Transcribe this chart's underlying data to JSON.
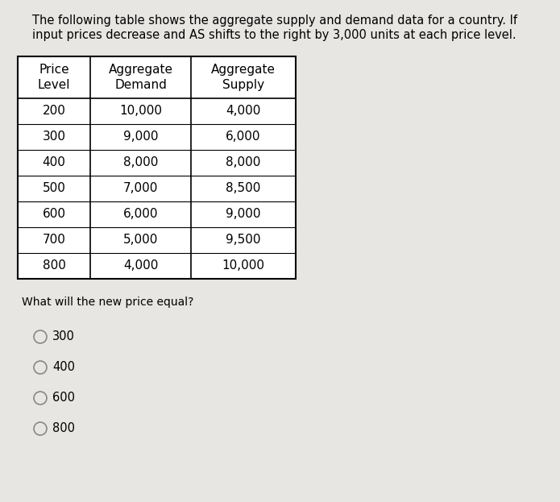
{
  "title_line1": "The following table shows the aggregate supply and demand data for a country. If",
  "title_line2": "input prices decrease and AS shifts to the right by 3,000 units at each price level.",
  "col_headers": [
    "Price\nLevel",
    "Aggregate\nDemand",
    "Aggregate\nSupply"
  ],
  "rows": [
    [
      "200",
      "10,000",
      "4,000"
    ],
    [
      "300",
      "9,000",
      "6,000"
    ],
    [
      "400",
      "8,000",
      "8,000"
    ],
    [
      "500",
      "7,000",
      "8,500"
    ],
    [
      "600",
      "6,000",
      "9,000"
    ],
    [
      "700",
      "5,000",
      "9,500"
    ],
    [
      "800",
      "4,000",
      "10,000"
    ]
  ],
  "question": "What will the new price equal?",
  "choices": [
    "300",
    "400",
    "600",
    "800"
  ],
  "bg_color": "#e8e6e3",
  "table_bg": "#ffffff",
  "header_fontsize": 11,
  "cell_fontsize": 11,
  "question_fontsize": 10,
  "choice_fontsize": 10.5,
  "title_fontsize": 10.5
}
